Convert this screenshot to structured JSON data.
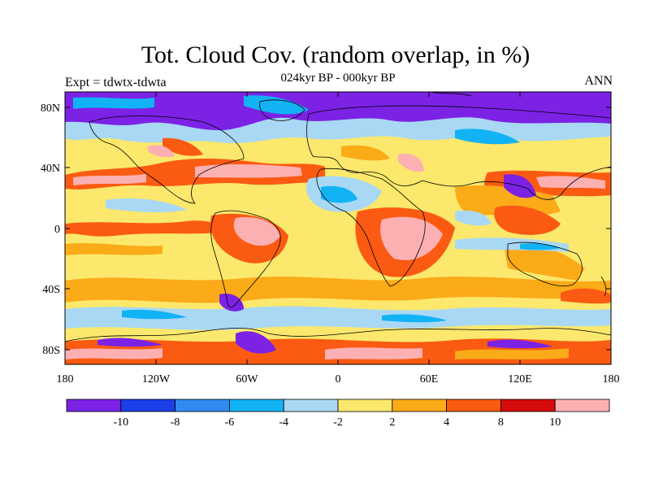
{
  "title": "Tot. Cloud Cov. (random overlap, in %)",
  "subtitle": "024kyr BP - 000kyr BP",
  "left_label": "Expt = tdwtx-tdwta",
  "right_label": "ANN",
  "lat_ticks": [
    "80N",
    "40N",
    "0",
    "40S",
    "80S"
  ],
  "lon_ticks": [
    "180",
    "120W",
    "60W",
    "0",
    "60E",
    "120E",
    "180"
  ],
  "colorbar": {
    "colors": [
      "#7b22e5",
      "#1c3ee8",
      "#2f8bf0",
      "#12b3f5",
      "#a9d8f5",
      "#fbe86c",
      "#fbaa18",
      "#fb5a12",
      "#d60b0b",
      "#fdb0b2"
    ],
    "labels": [
      "-10",
      "-8",
      "-6",
      "-4",
      "-2",
      "2",
      "4",
      "8",
      "10"
    ]
  }
}
